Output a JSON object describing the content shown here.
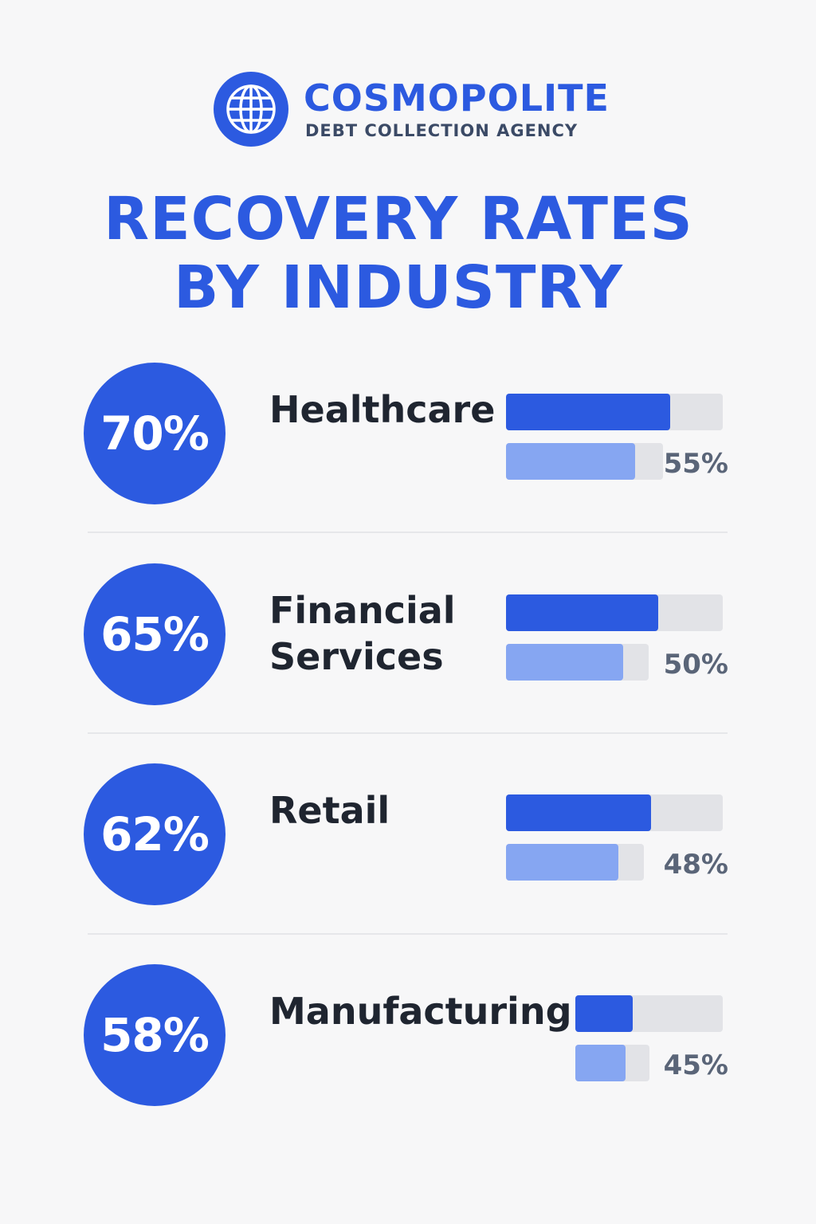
{
  "brand": {
    "name": "COSMOPOLITE",
    "subtitle": "DEBT COLLECTION AGENCY",
    "logo_icon": "globe-icon",
    "accent_color": "#2c5ae0"
  },
  "chart_data": {
    "type": "bar",
    "title_lines": [
      "RECOVERY RATES",
      "BY INDUSTRY"
    ],
    "categories": [
      "Healthcare",
      "Financial\nServices",
      "Retail",
      "Manufacturing"
    ],
    "series": [
      {
        "values": [
          70,
          65,
          62,
          58
        ],
        "color": "#2c5ae0"
      },
      {
        "values": [
          55,
          50,
          48,
          45
        ],
        "color": "#86a6f2"
      }
    ],
    "primary_labels": [
      "70%",
      "65%",
      "62%",
      "58%"
    ],
    "secondary_labels": [
      "55%",
      "50%",
      "48%",
      "45%"
    ],
    "ylim": [
      0,
      100
    ]
  }
}
